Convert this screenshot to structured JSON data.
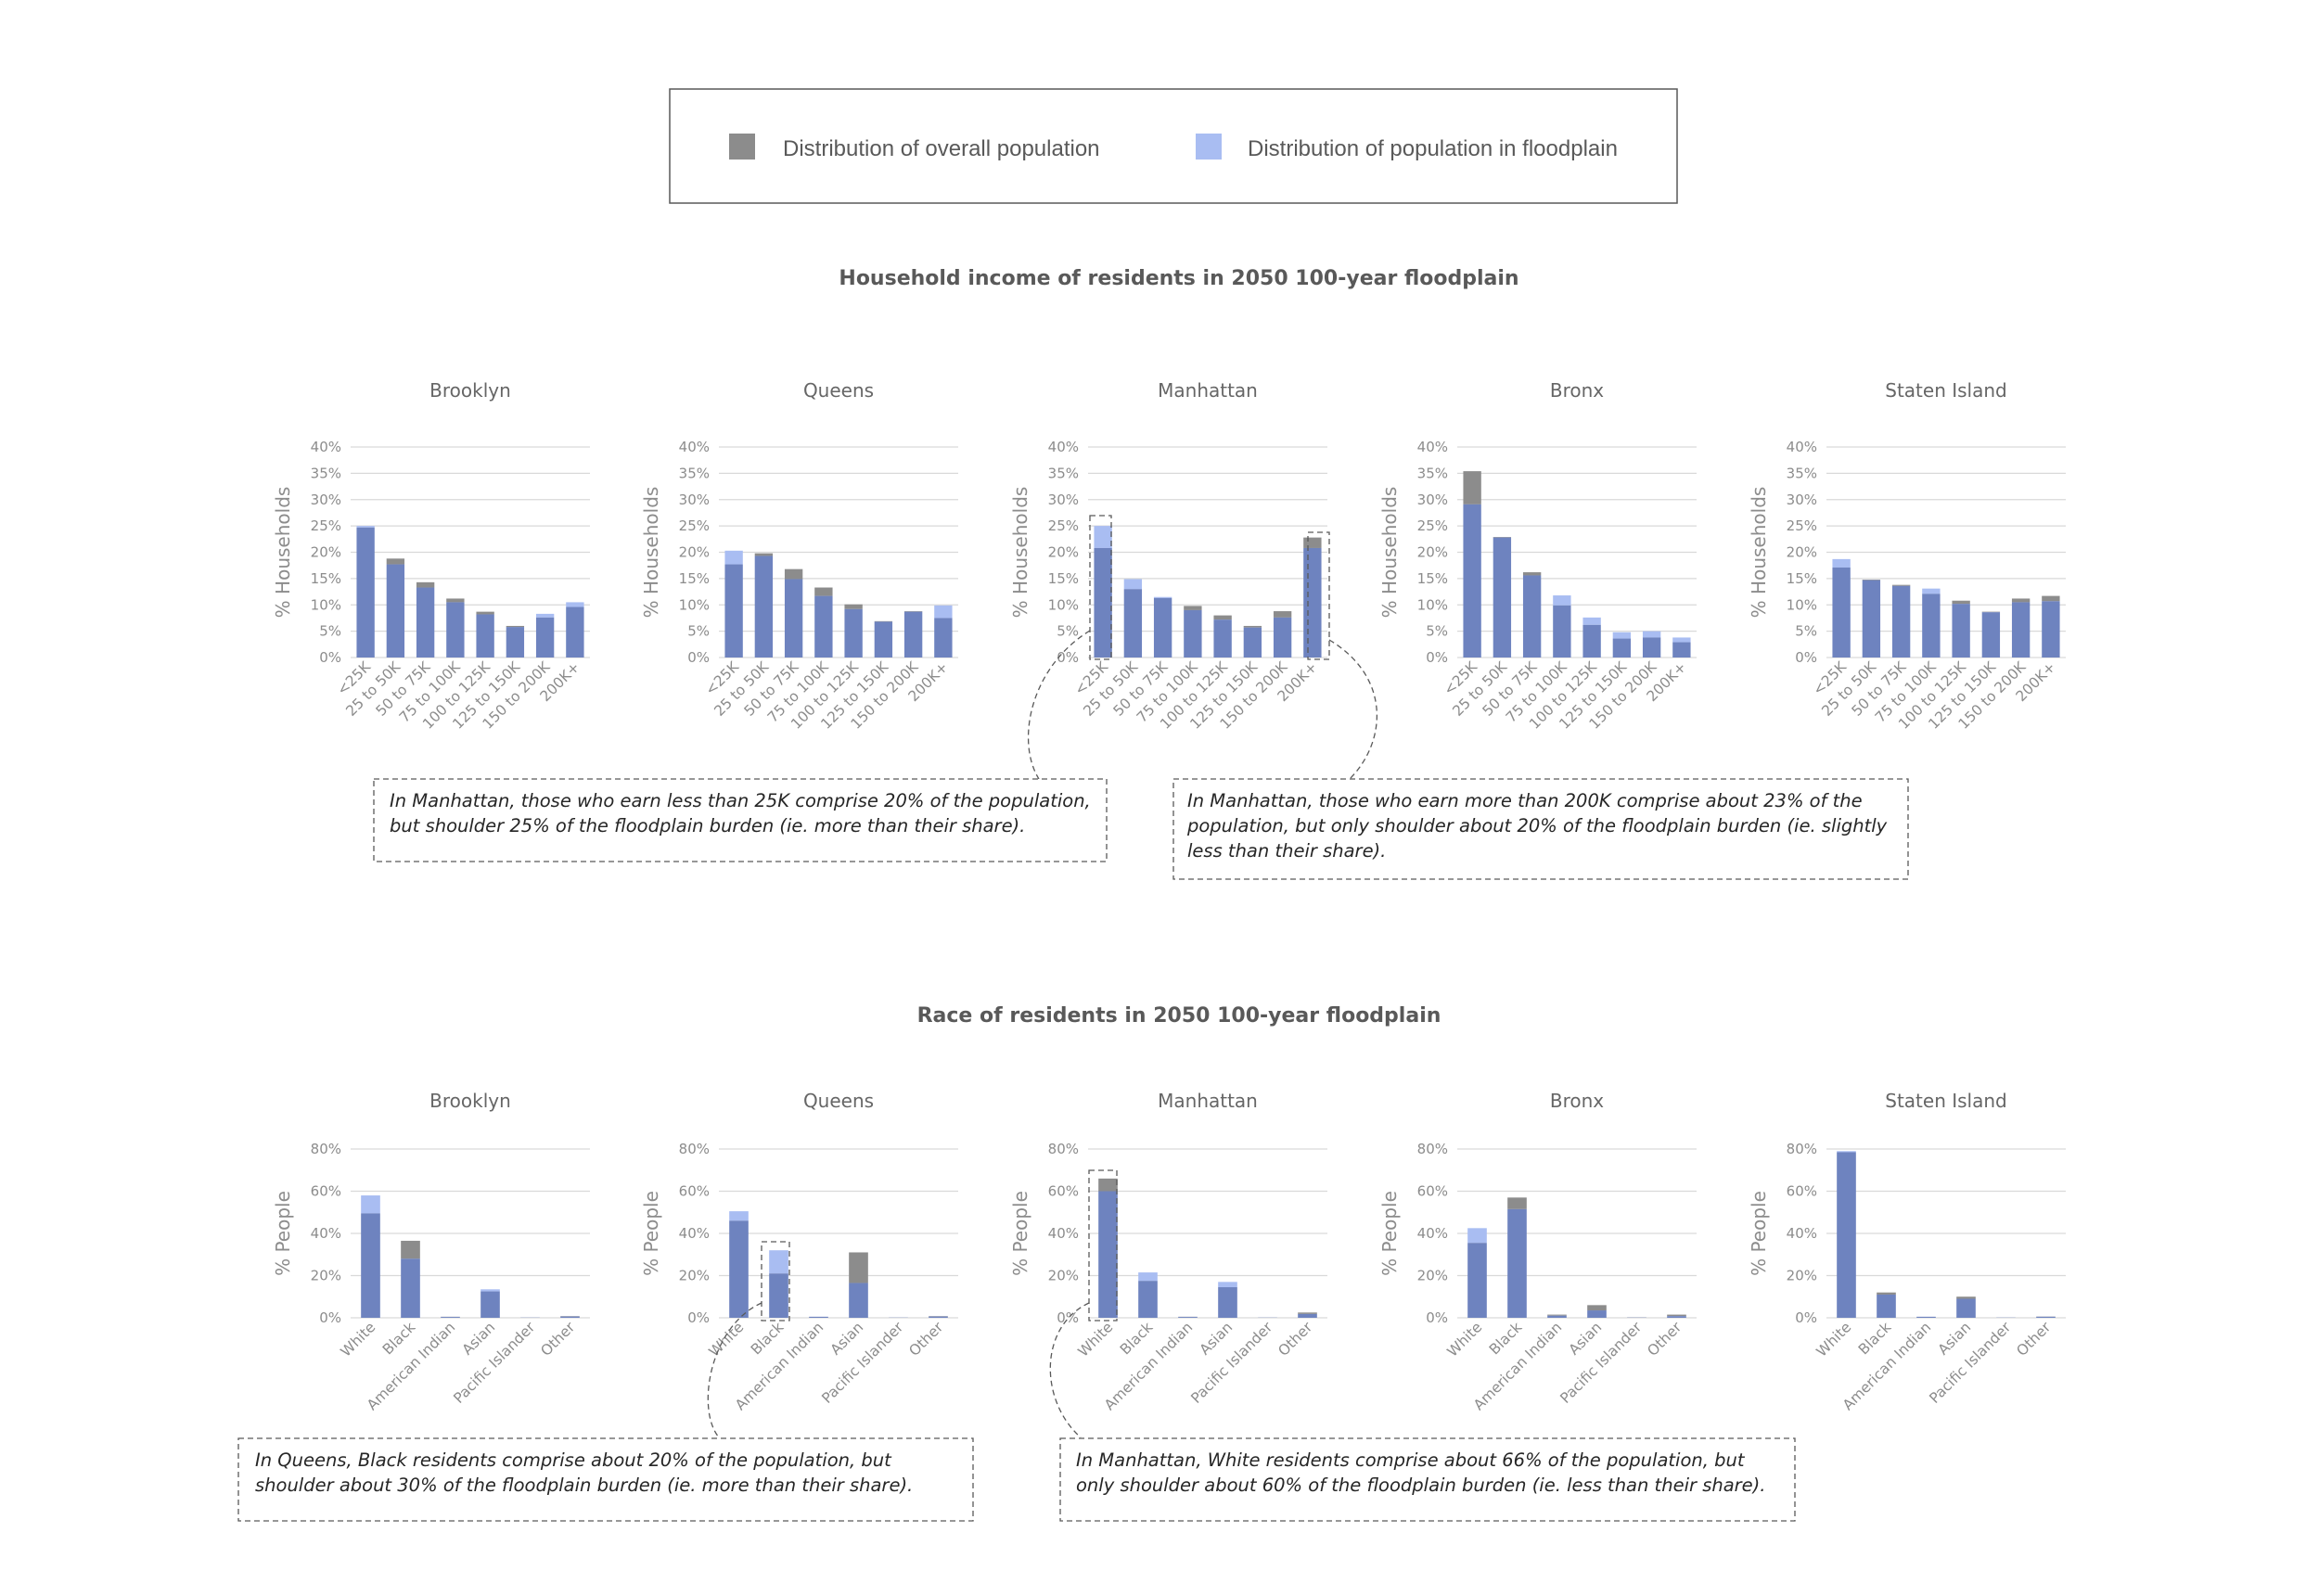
{
  "legend": {
    "overall_label": "Distribution of overall population",
    "floodplain_label": "Distribution of population in floodplain"
  },
  "colors": {
    "overall": "#8c8c8c",
    "floodplain": "#a9bdf2",
    "overlap": "#6e83bf",
    "grid": "#d9d9d9",
    "tick_text": "#8c8c8c",
    "title_text": "#595959",
    "panel_title": "#666666",
    "annotation_text": "#262626",
    "box_border": "#7f7f7f"
  },
  "income_section": {
    "title": "Household income of residents in 2050 100-year floodplain",
    "ylabel": "% Households",
    "annotations": [
      "In Manhattan, those who earn less than 25K comprise 20% of the population, but shoulder 25% of the floodplain burden (ie. more than their share).",
      "In Manhattan, those who earn more than 200K comprise about 23% of the population, but only shoulder about 20% of the floodplain burden (ie. slightly less than their share)."
    ]
  },
  "race_section": {
    "title": "Race of residents in 2050 100-year floodplain",
    "ylabel": "% People",
    "annotations": [
      "In Queens, Black residents comprise about 20% of the population, but shoulder about 30% of the floodplain burden (ie. more than their share).",
      "In Manhattan, White residents comprise about 66% of the population, but only shoulder about 60% of the floodplain burden (ie. less than their share)."
    ]
  },
  "chart_data": [
    {
      "type": "bar",
      "group": "income",
      "title": "Brooklyn",
      "ylabel": "% Households",
      "categories": [
        "<25K",
        "25 to 50K",
        "50 to 75K",
        "75 to 100K",
        "100 to 125K",
        "125 to 150K",
        "150 to 200K",
        "200K+"
      ],
      "ylim": [
        0,
        40
      ],
      "yticks": [
        "0%",
        "5%",
        "10%",
        "15%",
        "20%",
        "25%",
        "30%",
        "35%",
        "40%"
      ],
      "series": [
        {
          "name": "Distribution of overall population",
          "values": [
            24.7,
            18.8,
            14.3,
            11.2,
            8.7,
            6.0,
            7.6,
            9.6
          ]
        },
        {
          "name": "Distribution of population in floodplain",
          "values": [
            25.0,
            17.7,
            13.3,
            10.5,
            8.2,
            5.8,
            8.3,
            10.5
          ]
        }
      ]
    },
    {
      "type": "bar",
      "group": "income",
      "title": "Queens",
      "ylabel": "% Households",
      "categories": [
        "<25K",
        "25 to 50K",
        "50 to 75K",
        "75 to 100K",
        "100 to 125K",
        "125 to 150K",
        "150 to 200K",
        "200K+"
      ],
      "ylim": [
        0,
        40
      ],
      "yticks": [
        "0%",
        "5%",
        "10%",
        "15%",
        "20%",
        "25%",
        "30%",
        "35%",
        "40%"
      ],
      "series": [
        {
          "name": "Distribution of overall population",
          "values": [
            17.7,
            19.8,
            16.8,
            13.3,
            10.1,
            6.9,
            8.8,
            7.5
          ]
        },
        {
          "name": "Distribution of population in floodplain",
          "values": [
            20.3,
            19.3,
            14.9,
            11.7,
            9.2,
            6.8,
            8.7,
            9.9
          ]
        }
      ]
    },
    {
      "type": "bar",
      "group": "income",
      "title": "Manhattan",
      "ylabel": "% Households",
      "categories": [
        "<25K",
        "25 to 50K",
        "50 to 75K",
        "75 to 100K",
        "100 to 125K",
        "125 to 150K",
        "150 to 200K",
        "200K+"
      ],
      "ylim": [
        0,
        40
      ],
      "yticks": [
        "0%",
        "5%",
        "10%",
        "15%",
        "20%",
        "25%",
        "30%",
        "35%",
        "40%"
      ],
      "series": [
        {
          "name": "Distribution of overall population",
          "values": [
            20.8,
            13.0,
            11.3,
            9.8,
            8.0,
            6.0,
            8.8,
            22.8
          ]
        },
        {
          "name": "Distribution of population in floodplain",
          "values": [
            25.0,
            14.9,
            11.5,
            9.0,
            7.2,
            5.7,
            7.6,
            20.8
          ]
        }
      ]
    },
    {
      "type": "bar",
      "group": "income",
      "title": "Bronx",
      "ylabel": "% Households",
      "categories": [
        "<25K",
        "25 to 50K",
        "50 to 75K",
        "75 to 100K",
        "100 to 125K",
        "125 to 150K",
        "150 to 200K",
        "200K+"
      ],
      "ylim": [
        0,
        40
      ],
      "yticks": [
        "0%",
        "5%",
        "10%",
        "15%",
        "20%",
        "25%",
        "30%",
        "35%",
        "40%"
      ],
      "series": [
        {
          "name": "Distribution of overall population",
          "values": [
            35.4,
            22.9,
            16.2,
            9.9,
            6.2,
            3.6,
            3.8,
            2.9
          ]
        },
        {
          "name": "Distribution of population in floodplain",
          "values": [
            29.1,
            22.8,
            15.6,
            11.8,
            7.6,
            4.8,
            5.0,
            3.8
          ]
        }
      ]
    },
    {
      "type": "bar",
      "group": "income",
      "title": "Staten Island",
      "ylabel": "% Households",
      "categories": [
        "<25K",
        "25 to 50K",
        "50 to 75K",
        "75 to 100K",
        "100 to 125K",
        "125 to 150K",
        "150 to 200K",
        "200K+"
      ],
      "ylim": [
        0,
        40
      ],
      "yticks": [
        "0%",
        "5%",
        "10%",
        "15%",
        "20%",
        "25%",
        "30%",
        "35%",
        "40%"
      ],
      "series": [
        {
          "name": "Distribution of overall population",
          "values": [
            17.1,
            14.8,
            13.8,
            12.1,
            10.8,
            8.7,
            11.2,
            11.7
          ]
        },
        {
          "name": "Distribution of population in floodplain",
          "values": [
            18.7,
            14.7,
            13.6,
            13.1,
            10.2,
            8.6,
            10.5,
            10.7
          ]
        }
      ]
    },
    {
      "type": "bar",
      "group": "race",
      "title": "Brooklyn",
      "ylabel": "% People",
      "categories": [
        "White",
        "Black",
        "American Indian",
        "Asian",
        "Pacific Islander",
        "Other"
      ],
      "ylim": [
        0,
        80
      ],
      "yticks": [
        "0%",
        "20%",
        "40%",
        "60%",
        "80%"
      ],
      "series": [
        {
          "name": "Distribution of overall population",
          "values": [
            49.5,
            36.5,
            0.5,
            12.5,
            0.1,
            0.8
          ]
        },
        {
          "name": "Distribution of population in floodplain",
          "values": [
            58.0,
            28.0,
            0.4,
            13.5,
            0.1,
            0.6
          ]
        }
      ]
    },
    {
      "type": "bar",
      "group": "race",
      "title": "Queens",
      "ylabel": "% People",
      "categories": [
        "White",
        "Black",
        "American Indian",
        "Asian",
        "Pacific Islander",
        "Other"
      ],
      "ylim": [
        0,
        80
      ],
      "yticks": [
        "0%",
        "20%",
        "40%",
        "60%",
        "80%"
      ],
      "series": [
        {
          "name": "Distribution of overall population",
          "values": [
            46.0,
            21.0,
            0.5,
            31.0,
            0.1,
            0.8
          ]
        },
        {
          "name": "Distribution of population in floodplain",
          "values": [
            50.5,
            32.0,
            0.5,
            16.5,
            0.1,
            0.6
          ]
        }
      ]
    },
    {
      "type": "bar",
      "group": "race",
      "title": "Manhattan",
      "ylabel": "% People",
      "categories": [
        "White",
        "Black",
        "American Indian",
        "Asian",
        "Pacific Islander",
        "Other"
      ],
      "ylim": [
        0,
        80
      ],
      "yticks": [
        "0%",
        "20%",
        "40%",
        "60%",
        "80%"
      ],
      "series": [
        {
          "name": "Distribution of overall population",
          "values": [
            66.0,
            17.5,
            0.5,
            14.5,
            0.1,
            2.5
          ]
        },
        {
          "name": "Distribution of population in floodplain",
          "values": [
            60.0,
            21.5,
            0.4,
            17.0,
            0.1,
            1.8
          ]
        }
      ]
    },
    {
      "type": "bar",
      "group": "race",
      "title": "Bronx",
      "ylabel": "% People",
      "categories": [
        "White",
        "Black",
        "American Indian",
        "Asian",
        "Pacific Islander",
        "Other"
      ],
      "ylim": [
        0,
        80
      ],
      "yticks": [
        "0%",
        "20%",
        "40%",
        "60%",
        "80%"
      ],
      "series": [
        {
          "name": "Distribution of overall population",
          "values": [
            35.5,
            57.0,
            1.5,
            6.0,
            0.2,
            1.5
          ]
        },
        {
          "name": "Distribution of population in floodplain",
          "values": [
            42.5,
            51.5,
            1.0,
            3.5,
            0.1,
            0.8
          ]
        }
      ]
    },
    {
      "type": "bar",
      "group": "race",
      "title": "Staten Island",
      "ylabel": "% People",
      "categories": [
        "White",
        "Black",
        "American Indian",
        "Asian",
        "Pacific Islander",
        "Other"
      ],
      "ylim": [
        0,
        80
      ],
      "yticks": [
        "0%",
        "20%",
        "40%",
        "60%",
        "80%"
      ],
      "series": [
        {
          "name": "Distribution of overall population",
          "values": [
            78.5,
            12.0,
            0.5,
            10.0,
            0.1,
            0.6
          ]
        },
        {
          "name": "Distribution of population in floodplain",
          "values": [
            79.0,
            11.0,
            0.5,
            9.0,
            0.1,
            0.5
          ]
        }
      ]
    }
  ]
}
